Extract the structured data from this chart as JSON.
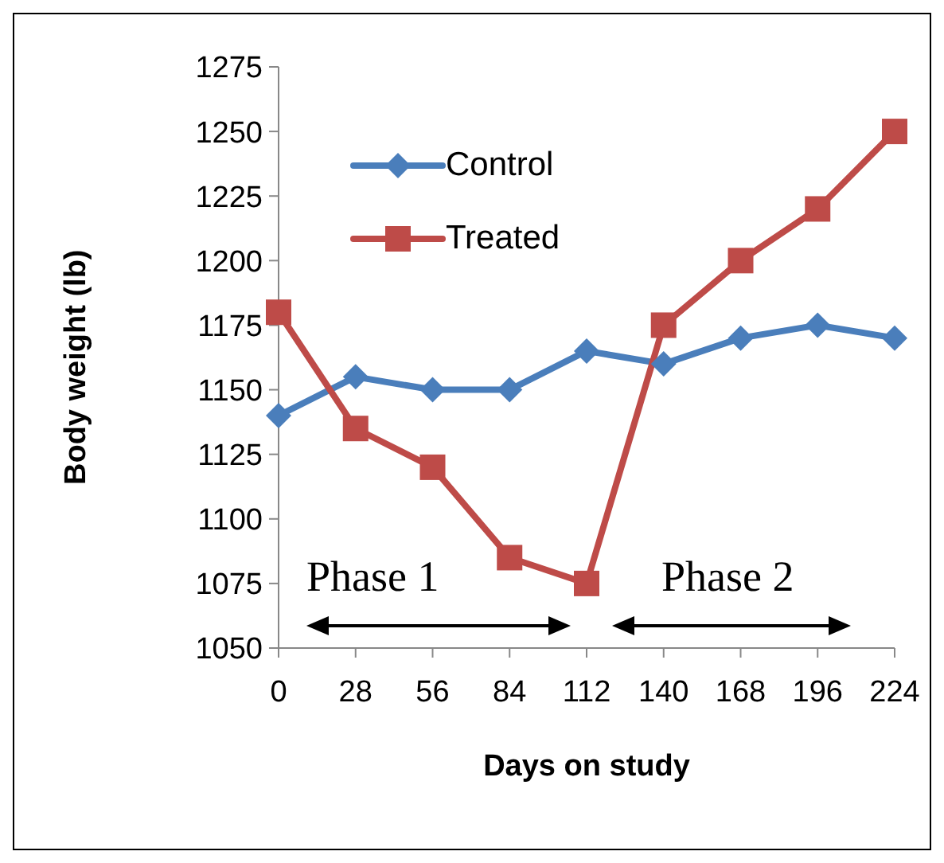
{
  "chart_data": {
    "type": "line",
    "xlabel": "Days on study",
    "ylabel": "Body weight (lb)",
    "categories": [
      "0",
      "28",
      "56",
      "84",
      "112",
      "140",
      "168",
      "196",
      "224"
    ],
    "series": [
      {
        "name": "Control",
        "color": "#4a7ebb",
        "marker": "diamond",
        "values": [
          1140,
          1155,
          1150,
          1150,
          1165,
          1160,
          1170,
          1175,
          1170
        ]
      },
      {
        "name": "Treated",
        "color": "#be4b48",
        "marker": "square",
        "values": [
          1180,
          1135,
          1120,
          1085,
          1075,
          1175,
          1200,
          1220,
          1250
        ]
      }
    ],
    "ylim": [
      1050,
      1275
    ],
    "yticks": [
      1050,
      1075,
      1100,
      1125,
      1150,
      1175,
      1200,
      1225,
      1250,
      1275
    ],
    "grid": false,
    "legend": "top left",
    "annotations": [
      "Phase 1",
      "Phase 2"
    ]
  }
}
